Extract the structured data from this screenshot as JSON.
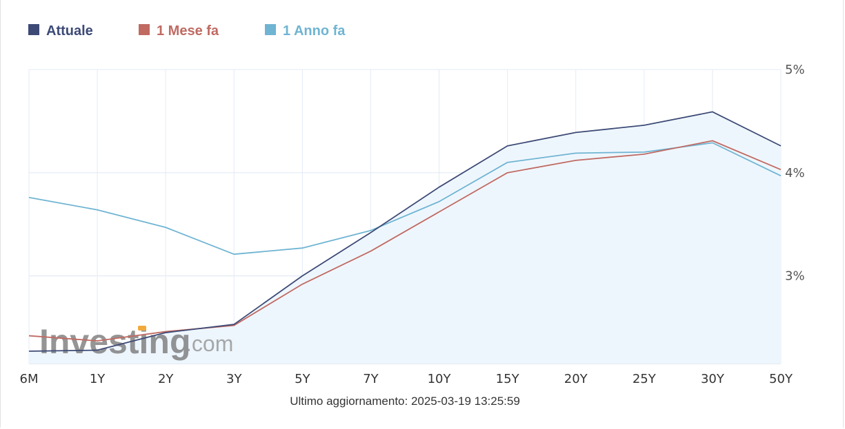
{
  "chart_data": {
    "type": "line",
    "categories": [
      "6M",
      "1Y",
      "2Y",
      "3Y",
      "5Y",
      "7Y",
      "10Y",
      "15Y",
      "20Y",
      "25Y",
      "30Y",
      "50Y"
    ],
    "series": [
      {
        "name": "Attuale",
        "color": "#3d4a76",
        "values": [
          2.27,
          2.28,
          2.45,
          2.53,
          3.0,
          3.42,
          3.86,
          4.26,
          4.39,
          4.46,
          4.59,
          4.26
        ]
      },
      {
        "name": "1 Mese fa",
        "color": "#c06a62",
        "values": [
          2.42,
          2.37,
          2.46,
          2.52,
          2.92,
          3.24,
          3.62,
          4.0,
          4.12,
          4.18,
          4.31,
          4.03
        ]
      },
      {
        "name": "1 Anno fa",
        "color": "#6fb4d2",
        "values": [
          3.76,
          3.64,
          3.47,
          3.21,
          3.27,
          3.44,
          3.72,
          4.1,
          4.19,
          4.2,
          4.29,
          3.97
        ]
      }
    ],
    "yticks": [
      "3%",
      "4%",
      "5%"
    ],
    "ytick_values": [
      3,
      4,
      5
    ],
    "ylim": [
      2.15,
      5.0
    ],
    "y_axis_side": "right",
    "grid": true,
    "legend_position": "top-left",
    "area_fill_series": "Attuale",
    "area_fill_color": "#eef6fd"
  },
  "footer": {
    "updated_label": "Ultimo aggiornamento: 2025-03-19 13:25:59"
  },
  "watermark": {
    "brand": "Investing",
    "suffix": ".com"
  },
  "colors": {
    "grid": "#e3ebf5",
    "axis": "#c9d3e0",
    "watermark_accent": "#f2a93b"
  }
}
